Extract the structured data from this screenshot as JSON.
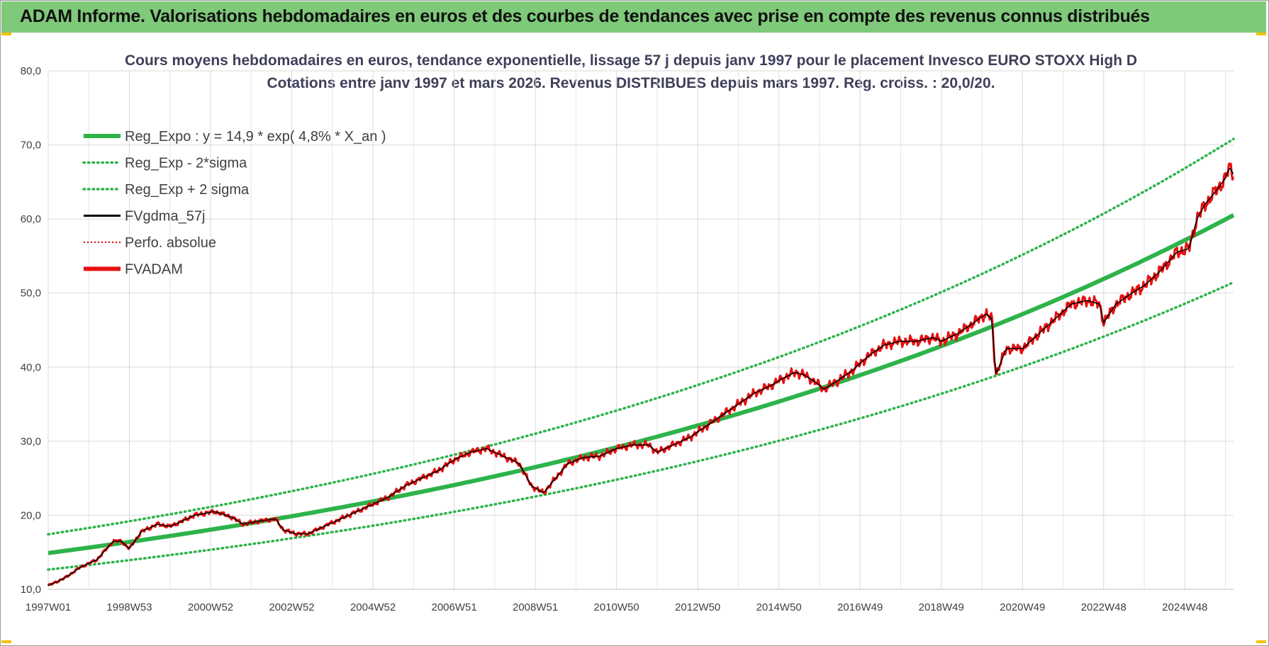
{
  "banner": {
    "title": "ADAM Informe. Valorisations hebdomadaires en euros et des courbes de tendances avec prise en compte des revenus connus distribués"
  },
  "chart_data": {
    "type": "line",
    "title_lines": [
      "Cours moyens hebdomadaires en euros, tendance exponentielle, lissage 57 j depuis janv 1997  pour le placement Invesco EURO STOXX High D",
      "Cotations entre janv 1997 et mars 2026. Revenus DISTRIBUES depuis mars 1997. Reg. croiss. : 20,0/20."
    ],
    "xlabel": "",
    "ylabel": "",
    "x_unit": "years since 1997W01",
    "xlim": [
      0,
      29.2
    ],
    "ylim": [
      10,
      80
    ],
    "y_ticks": [
      10,
      20,
      30,
      40,
      50,
      60,
      70,
      80
    ],
    "y_tick_labels": [
      "10,0",
      "20,0",
      "30,0",
      "40,0",
      "50,0",
      "60,0",
      "70,0",
      "80,0"
    ],
    "x_ticks": [
      {
        "x": 0.0,
        "label": "1997W01"
      },
      {
        "x": 2.0,
        "label": "1998W53"
      },
      {
        "x": 4.0,
        "label": "2000W52"
      },
      {
        "x": 6.0,
        "label": "2002W52"
      },
      {
        "x": 8.0,
        "label": "2004W52"
      },
      {
        "x": 10.0,
        "label": "2006W51"
      },
      {
        "x": 12.0,
        "label": "2008W51"
      },
      {
        "x": 14.0,
        "label": "2010W50"
      },
      {
        "x": 16.0,
        "label": "2012W50"
      },
      {
        "x": 18.0,
        "label": "2014W50"
      },
      {
        "x": 20.0,
        "label": "2016W49"
      },
      {
        "x": 22.0,
        "label": "2018W49"
      },
      {
        "x": 24.0,
        "label": "2020W49"
      },
      {
        "x": 26.0,
        "label": "2022W48"
      },
      {
        "x": 28.0,
        "label": "2024W48"
      }
    ],
    "grid": true,
    "legend_position": "top-left",
    "regression": {
      "a": 14.9,
      "growth_rate": 0.048,
      "sigma_factor_low": 0.85,
      "sigma_factor_high": 1.17
    },
    "series": [
      {
        "name": "Reg_Expo : y = 14,9 * exp( 4,8% *  X_an )",
        "style": "solid-thick",
        "color": "#2db34a",
        "kind": "reg"
      },
      {
        "name": "Reg_Exp - 2*sigma",
        "style": "dotted",
        "color": "#2db34a",
        "kind": "low"
      },
      {
        "name": "Reg_Exp + 2 sigma",
        "style": "dotted",
        "color": "#2db34a",
        "kind": "high"
      },
      {
        "name": "FVgdma_57j",
        "style": "solid",
        "color": "#000000",
        "kind": "smooth"
      },
      {
        "name": "Perfo. absolue",
        "style": "dotted-thin",
        "color": "#e00000",
        "kind": "none"
      },
      {
        "name": "FVADAM",
        "style": "solid-thick",
        "color": "#e81010",
        "kind": "price"
      }
    ],
    "price_points": [
      [
        0.0,
        10.5
      ],
      [
        0.4,
        11.5
      ],
      [
        0.8,
        13.0
      ],
      [
        1.2,
        14.0
      ],
      [
        1.6,
        16.5
      ],
      [
        1.8,
        16.5
      ],
      [
        2.0,
        15.5
      ],
      [
        2.3,
        17.8
      ],
      [
        2.7,
        18.8
      ],
      [
        3.0,
        18.5
      ],
      [
        3.3,
        19.2
      ],
      [
        3.6,
        20.0
      ],
      [
        3.9,
        20.3
      ],
      [
        4.1,
        20.5
      ],
      [
        4.5,
        19.8
      ],
      [
        4.8,
        18.8
      ],
      [
        5.2,
        19.2
      ],
      [
        5.6,
        19.5
      ],
      [
        5.8,
        18.0
      ],
      [
        6.1,
        17.5
      ],
      [
        6.4,
        17.5
      ],
      [
        6.8,
        18.5
      ],
      [
        7.2,
        19.5
      ],
      [
        7.6,
        20.5
      ],
      [
        8.0,
        21.5
      ],
      [
        8.4,
        22.5
      ],
      [
        8.8,
        24.0
      ],
      [
        9.2,
        25.0
      ],
      [
        9.6,
        26.0
      ],
      [
        10.0,
        27.5
      ],
      [
        10.4,
        28.5
      ],
      [
        10.8,
        29.0
      ],
      [
        11.0,
        28.5
      ],
      [
        11.4,
        27.5
      ],
      [
        11.6,
        27.0
      ],
      [
        11.9,
        24.0
      ],
      [
        12.2,
        23.0
      ],
      [
        12.5,
        25.0
      ],
      [
        12.8,
        27.0
      ],
      [
        13.2,
        27.8
      ],
      [
        13.6,
        28.0
      ],
      [
        14.0,
        29.0
      ],
      [
        14.4,
        29.5
      ],
      [
        14.8,
        29.5
      ],
      [
        15.0,
        28.5
      ],
      [
        15.4,
        29.5
      ],
      [
        15.8,
        30.5
      ],
      [
        16.2,
        32.0
      ],
      [
        16.6,
        33.5
      ],
      [
        17.0,
        35.0
      ],
      [
        17.4,
        36.5
      ],
      [
        17.8,
        37.5
      ],
      [
        18.1,
        38.5
      ],
      [
        18.4,
        39.3
      ],
      [
        18.6,
        39.0
      ],
      [
        18.9,
        38.0
      ],
      [
        19.1,
        37.0
      ],
      [
        19.4,
        38.0
      ],
      [
        19.8,
        39.5
      ],
      [
        20.2,
        41.5
      ],
      [
        20.6,
        43.0
      ],
      [
        21.0,
        43.5
      ],
      [
        21.4,
        43.5
      ],
      [
        21.8,
        44.0
      ],
      [
        22.0,
        43.5
      ],
      [
        22.4,
        44.5
      ],
      [
        22.8,
        46.0
      ],
      [
        23.1,
        47.2
      ],
      [
        23.25,
        46.5
      ],
      [
        23.3,
        42.0
      ],
      [
        23.35,
        39.0
      ],
      [
        23.6,
        42.5
      ],
      [
        24.0,
        42.5
      ],
      [
        24.4,
        44.5
      ],
      [
        24.8,
        46.5
      ],
      [
        25.2,
        48.5
      ],
      [
        25.6,
        49.0
      ],
      [
        25.9,
        48.5
      ],
      [
        26.0,
        46.0
      ],
      [
        26.3,
        48.5
      ],
      [
        26.7,
        50.0
      ],
      [
        27.0,
        51.0
      ],
      [
        27.4,
        53.0
      ],
      [
        27.8,
        55.5
      ],
      [
        28.1,
        56.0
      ],
      [
        28.3,
        60.0
      ],
      [
        28.5,
        62.0
      ],
      [
        28.8,
        64.0
      ],
      [
        29.0,
        65.5
      ],
      [
        29.1,
        67.0
      ],
      [
        29.2,
        66.0
      ]
    ]
  }
}
